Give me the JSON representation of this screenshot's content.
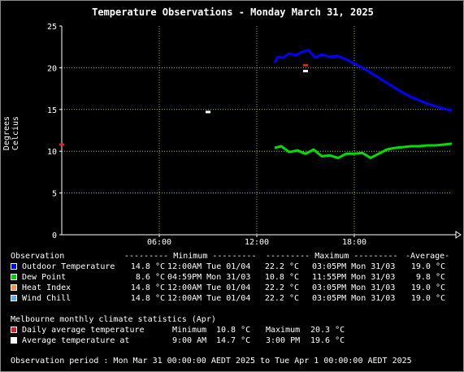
{
  "title": "Temperature Observations - Monday March 31, 2025",
  "chart_data": {
    "type": "line",
    "ylabel": "Degrees Celcius",
    "xlabel": "",
    "xlim": [
      0,
      24
    ],
    "ylim": [
      0,
      25
    ],
    "x_ticks": [
      {
        "v": 6,
        "label": "06:00"
      },
      {
        "v": 12,
        "label": "12:00"
      },
      {
        "v": 18,
        "label": "18:00"
      }
    ],
    "y_ticks": [
      0,
      5,
      10,
      15,
      20,
      25
    ],
    "grid": true,
    "grid_color": "#9acd32",
    "series": [
      {
        "name": "Outdoor Temperature",
        "color": "#0000ff",
        "x": [
          13.1,
          13.3,
          13.6,
          14.0,
          14.4,
          14.8,
          15.2,
          15.6,
          16.0,
          16.5,
          17.0,
          17.5,
          18.0,
          18.5,
          19.0,
          19.5,
          20.0,
          20.5,
          21.0,
          21.5,
          22.0,
          22.5,
          23.0,
          23.5,
          24.0
        ],
        "y": [
          20.6,
          21.3,
          21.2,
          21.7,
          21.5,
          21.9,
          22.1,
          21.2,
          21.6,
          21.3,
          21.4,
          21.0,
          20.5,
          20.0,
          19.4,
          18.8,
          18.2,
          17.6,
          17.0,
          16.5,
          16.1,
          15.7,
          15.4,
          15.1,
          14.9
        ]
      },
      {
        "name": "Dew Point",
        "color": "#00dd00",
        "x": [
          13.1,
          13.5,
          14.0,
          14.5,
          15.0,
          15.5,
          16.0,
          16.5,
          17.0,
          17.5,
          18.0,
          18.5,
          19.0,
          19.5,
          20.0,
          20.5,
          21.0,
          21.5,
          22.0,
          22.5,
          23.0,
          23.5,
          24.0
        ],
        "y": [
          10.4,
          10.6,
          9.9,
          10.1,
          9.7,
          10.2,
          9.4,
          9.5,
          9.2,
          9.7,
          9.7,
          9.8,
          9.2,
          9.7,
          10.2,
          10.4,
          10.5,
          10.6,
          10.6,
          10.7,
          10.7,
          10.8,
          10.9
        ]
      }
    ],
    "points": [
      {
        "name": "Daily average temperature",
        "color": "#dd2222",
        "x": 0.0,
        "y": 10.8
      },
      {
        "name": "Daily average temperature",
        "color": "#dd2222",
        "x": 15.0,
        "y": 20.3
      },
      {
        "name": "Average temperature at",
        "color": "#ffffff",
        "x": 9.0,
        "y": 14.7
      },
      {
        "name": "Average temperature at",
        "color": "#ffffff",
        "x": 15.0,
        "y": 19.6
      }
    ]
  },
  "legend": {
    "header": {
      "observation": "Observation",
      "minimum": "--------- Minimum ---------",
      "maximum": "--------- Maximum ---------",
      "average": "-Average-"
    },
    "rows": [
      {
        "label": "Outdoor Temperature",
        "color": "#0000ff",
        "min": "14.8 °C",
        "min_time": "12:00AM Tue 01/04",
        "max": "22.2 °C",
        "max_time": "03:05PM Mon 31/03",
        "avg": "19.0 °C"
      },
      {
        "label": "Dew Point",
        "color": "#00cc00",
        "min": "8.6 °C",
        "min_time": "04:59PM Mon 31/03",
        "max": "10.8 °C",
        "max_time": "11:55PM Mon 31/03",
        "avg": "9.8 °C"
      },
      {
        "label": "Heat Index",
        "color": "#ff8c40",
        "min": "14.8 °C",
        "min_time": "12:00AM Tue 01/04",
        "max": "22.2 °C",
        "max_time": "03:05PM Mon 31/03",
        "avg": "19.0 °C"
      },
      {
        "label": "Wind Chill",
        "color": "#5cacee",
        "min": "14.8 °C",
        "min_time": "12:00AM Tue 01/04",
        "max": "22.2 °C",
        "max_time": "03:05PM Mon 31/03",
        "avg": "19.0 °C"
      }
    ]
  },
  "climate": {
    "heading": "Melbourne monthly climate statistics (Apr)",
    "rows": [
      {
        "label": "Daily average temperature",
        "color": "#dd2222",
        "a_label": "Minimum",
        "a_val": "10.8 °C",
        "b_label": "Maximum",
        "b_val": "20.3 °C"
      },
      {
        "label": "Average temperature at",
        "color": "#ffffff",
        "a_label": "9:00 AM",
        "a_val": "14.7 °C",
        "b_label": "3:00 PM",
        "b_val": "19.6 °C"
      }
    ]
  },
  "period": "Observation period : Mon Mar 31 00:00:00 AEDT 2025 to Tue Apr 1 00:00:00 AEDT 2025"
}
